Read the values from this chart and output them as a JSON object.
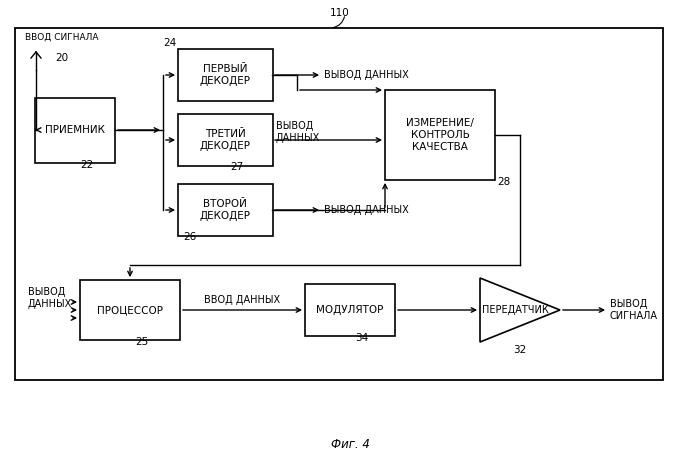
{
  "title": "Фиг. 4",
  "label_110": "110",
  "label_20": "20",
  "label_22": "22",
  "label_24": "24",
  "label_25": "25",
  "label_26": "26",
  "label_27": "27",
  "label_28": "28",
  "label_32": "32",
  "label_34": "34",
  "text_signal_in": "ВВОД СИГНАЛА",
  "text_receiver": "ПРИЕМНИК",
  "text_decoder1": "ПЕРВЫЙ\nДЕКОДЕР",
  "text_decoder3": "ТРЕТИЙ\nДЕКОДЕР",
  "text_decoder2": "ВТОРОЙ\nДЕКОДЕР",
  "text_measure": "ИЗМЕРЕНИЕ/\nКОНТРОЛЬ\nКАЧЕСТВА",
  "text_processor": "ПРОЦЕССОР",
  "text_modulator": "МОДУЛЯТОР",
  "text_transmitter": "ПЕРЕДАТЧИК",
  "text_data_out": "ВЫВОД ДАННЫХ",
  "text_data_out2": "ВЫВОД\nДАННЫХ",
  "text_data_in": "ВВОД ДАННЫХ",
  "text_data_out_left": "ВЫВОД\nДАННЫХ",
  "text_signal_out": "ВЫВОД\nСИГНАЛА",
  "bg_color": "#ffffff",
  "box_color": "#ffffff",
  "box_edge": "#000000",
  "line_color": "#000000",
  "font_size": 7.5,
  "small_font": 7.0
}
